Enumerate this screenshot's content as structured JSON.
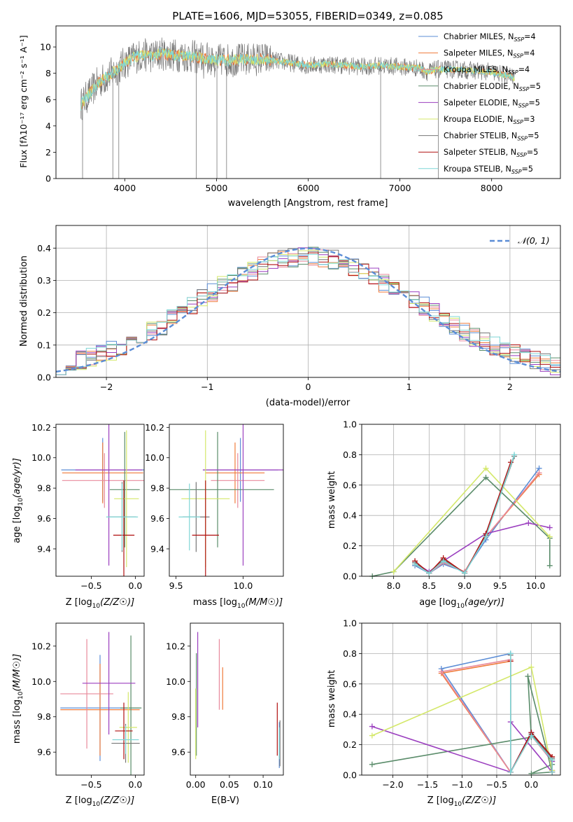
{
  "colors": {
    "Chabrier MILES": "#5b8dd6",
    "Salpeter MILES": "#f07c3c",
    "Kroupa MILES": "#e8899b",
    "Chabrier ELODIE": "#5a8c6a",
    "Salpeter ELODIE": "#9b3fbf",
    "Kroupa ELODIE": "#d4e86a",
    "Chabrier STELIB": "#777777",
    "Salpeter STELIB": "#b01010",
    "Kroupa STELIB": "#7fd6d6"
  },
  "chart_data": [
    {
      "id": "spectrum",
      "type": "line",
      "title": "PLATE=1606, MJD=53055, FIBERID=0349, z=0.085",
      "xlabel": "wavelength [Angstrom, rest frame]",
      "ylabel": "Flux [fλ10⁻¹⁷ erg cm⁻² s⁻¹ A⁻¹]",
      "xlim": [
        3250,
        8750
      ],
      "ylim": [
        0,
        11.6
      ],
      "xticks": [
        4000,
        5000,
        6000,
        7000,
        8000
      ],
      "yticks": [
        0,
        2,
        4,
        6,
        8,
        10
      ],
      "grid": false,
      "legend_position": "top-right",
      "legend": [
        {
          "model": "Chabrier MILES",
          "label": "Chabrier MILES, N",
          "sub": "SSP",
          "tail": "=4"
        },
        {
          "model": "Salpeter MILES",
          "label": "Salpeter MILES, N",
          "sub": "SSP",
          "tail": "=4"
        },
        {
          "model": "Kroupa MILES",
          "label": "Kroupa MILES, N",
          "sub": "SSP",
          "tail": "=4"
        },
        {
          "model": "Chabrier ELODIE",
          "label": "Chabrier ELODIE, N",
          "sub": "SSP",
          "tail": "=5"
        },
        {
          "model": "Salpeter ELODIE",
          "label": "Salpeter ELODIE, N",
          "sub": "SSP",
          "tail": "=5"
        },
        {
          "model": "Kroupa ELODIE",
          "label": "Kroupa ELODIE, N",
          "sub": "SSP",
          "tail": "=3"
        },
        {
          "model": "Chabrier STELIB",
          "label": "Chabrier STELIB, N",
          "sub": "SSP",
          "tail": "=5"
        },
        {
          "model": "Salpeter STELIB",
          "label": "Salpeter STELIB, N",
          "sub": "SSP",
          "tail": "=5"
        },
        {
          "model": "Kroupa STELIB",
          "label": "Kroupa STELIB, N",
          "sub": "SSP",
          "tail": "=5"
        }
      ],
      "continuum_x": [
        3520,
        3600,
        3700,
        3800,
        3900,
        4000,
        4100,
        4200,
        4300,
        4400,
        4500,
        4700,
        5000,
        5200,
        5500,
        5800,
        6000,
        6200,
        6400,
        6600,
        6800,
        7000,
        7200,
        7300,
        7400,
        7600,
        7800,
        8000,
        8200,
        8250
      ],
      "continuum_y": [
        5.6,
        6.3,
        7.2,
        7.7,
        8.2,
        8.8,
        9.2,
        9.4,
        9.3,
        9.5,
        9.4,
        9.3,
        9.0,
        9.0,
        9.1,
        8.8,
        8.6,
        8.7,
        8.6,
        8.5,
        8.6,
        8.5,
        8.4,
        8.1,
        8.3,
        8.3,
        8.2,
        8.1,
        7.8,
        7.6
      ],
      "deep_lines": [
        3540,
        3870,
        3935,
        4780,
        5005,
        5110,
        6790,
        7420
      ]
    },
    {
      "id": "residuals",
      "type": "line",
      "xlabel": "(data-model)/error",
      "ylabel": "Normed distribution",
      "xlim": [
        -2.5,
        2.5
      ],
      "ylim": [
        0,
        0.47
      ],
      "xticks": [
        -2,
        -1,
        0,
        1,
        2
      ],
      "yticks": [
        0.0,
        0.1,
        0.2,
        0.3,
        0.4
      ],
      "grid": true,
      "legend_position": "top-right",
      "legend": [
        {
          "label": "𝒩(0, 1)",
          "style": "dashed",
          "color": "#5b8dd6"
        }
      ],
      "bin_width": 0.1,
      "bin_start": -2.5
    },
    {
      "id": "age-vs-z",
      "type": "scatter",
      "xlabel_main": "Z [log",
      "xlabel_sub": "10",
      "xlabel_tail": "(Z/Z☉)]",
      "ylabel_main": "age  [log",
      "ylabel_sub": "10",
      "ylabel_tail": "(age/yr)]",
      "xlim": [
        -0.9,
        0.1
      ],
      "ylim": [
        9.22,
        10.22
      ],
      "xticks": [
        -0.5,
        0.0
      ],
      "yticks": [
        9.4,
        9.6,
        9.8,
        10.0,
        10.2
      ],
      "points": [
        {
          "model": "Chabrier MILES",
          "x": -0.37,
          "y": 9.92,
          "xerr": 0.47,
          "yerr": 0.21
        },
        {
          "model": "Salpeter MILES",
          "x": -0.37,
          "y": 9.9,
          "xerr": 0.46,
          "yerr": 0.2
        },
        {
          "model": "Kroupa MILES",
          "x": -0.35,
          "y": 9.85,
          "xerr": 0.48,
          "yerr": 0.18
        },
        {
          "model": "Chabrier ELODIE",
          "x": -0.12,
          "y": 9.79,
          "xerr": 0.17,
          "yerr": 0.38
        },
        {
          "model": "Salpeter ELODIE",
          "x": -0.3,
          "y": 9.92,
          "xerr": 0.38,
          "yerr": 0.63
        },
        {
          "model": "Kroupa ELODIE",
          "x": -0.1,
          "y": 9.73,
          "xerr": 0.14,
          "yerr": 0.45
        },
        {
          "model": "Chabrier STELIB",
          "x": -0.15,
          "y": 9.61,
          "xerr": 0.16,
          "yerr": 0.23
        },
        {
          "model": "Salpeter STELIB",
          "x": -0.13,
          "y": 9.49,
          "xerr": 0.12,
          "yerr": 0.36
        },
        {
          "model": "Kroupa STELIB",
          "x": -0.15,
          "y": 9.61,
          "xerr": 0.18,
          "yerr": 0.22
        }
      ]
    },
    {
      "id": "age-vs-mass",
      "type": "scatter",
      "xlabel_main": "mass [log",
      "xlabel_sub": "10",
      "xlabel_tail": "(M/M☉)]",
      "xlim": [
        9.45,
        10.3
      ],
      "ylim": [
        9.22,
        10.22
      ],
      "xticks": [
        9.5,
        10.0
      ],
      "yticks": [
        9.4,
        9.6,
        9.8,
        10.0,
        10.2
      ],
      "points": [
        {
          "model": "Chabrier MILES",
          "x": 9.98,
          "y": 9.92,
          "xerr": 0.28,
          "yerr": 0.21
        },
        {
          "model": "Salpeter MILES",
          "x": 9.94,
          "y": 9.9,
          "xerr": 0.22,
          "yerr": 0.2
        },
        {
          "model": "Kroupa MILES",
          "x": 9.96,
          "y": 9.85,
          "xerr": 0.2,
          "yerr": 0.18
        },
        {
          "model": "Chabrier ELODIE",
          "x": 9.81,
          "y": 9.79,
          "xerr": 0.42,
          "yerr": 0.38
        },
        {
          "model": "Salpeter ELODIE",
          "x": 10.0,
          "y": 9.92,
          "xerr": 0.3,
          "yerr": 0.63
        },
        {
          "model": "Kroupa ELODIE",
          "x": 9.72,
          "y": 9.73,
          "xerr": 0.18,
          "yerr": 0.45
        },
        {
          "model": "Chabrier STELIB",
          "x": 9.65,
          "y": 9.61,
          "xerr": 0.1,
          "yerr": 0.23
        },
        {
          "model": "Salpeter STELIB",
          "x": 9.72,
          "y": 9.49,
          "xerr": 0.1,
          "yerr": 0.36
        },
        {
          "model": "Kroupa STELIB",
          "x": 9.6,
          "y": 9.61,
          "xerr": 0.08,
          "yerr": 0.22
        }
      ]
    },
    {
      "id": "massweight-vs-age",
      "type": "line",
      "xlabel_main": "age  [log",
      "xlabel_sub": "10",
      "xlabel_tail": "(age/yr)]",
      "ylabel": "mass weight",
      "xlim": [
        7.55,
        10.35
      ],
      "ylim": [
        0,
        1.0
      ],
      "xticks": [
        8.0,
        8.5,
        9.0,
        9.5,
        10.0
      ],
      "yticks": [
        0.0,
        0.2,
        0.4,
        0.6,
        0.8,
        1.0
      ],
      "grid": true,
      "series": [
        {
          "model": "Chabrier MILES",
          "x": [
            8.3,
            8.5,
            8.7,
            9.0,
            9.3,
            10.05
          ],
          "y": [
            0.07,
            0.02,
            0.08,
            0.03,
            0.24,
            0.71
          ]
        },
        {
          "model": "Salpeter MILES",
          "x": [
            8.3,
            8.5,
            8.7,
            9.0,
            9.3,
            10.05
          ],
          "y": [
            0.08,
            0.02,
            0.09,
            0.03,
            0.26,
            0.67
          ]
        },
        {
          "model": "Kroupa MILES",
          "x": [
            8.3,
            8.5,
            8.7,
            9.0,
            9.3,
            10.05
          ],
          "y": [
            0.08,
            0.02,
            0.09,
            0.03,
            0.26,
            0.68
          ]
        },
        {
          "model": "Chabrier ELODIE",
          "x": [
            7.7,
            8.0,
            9.3,
            10.2,
            10.2
          ],
          "y": [
            0.0,
            0.03,
            0.65,
            0.25,
            0.07
          ]
        },
        {
          "model": "Salpeter ELODIE",
          "x": [
            8.3,
            8.5,
            8.7,
            9.3,
            9.9,
            10.2
          ],
          "y": [
            0.09,
            0.03,
            0.1,
            0.28,
            0.35,
            0.32
          ]
        },
        {
          "model": "Kroupa ELODIE",
          "x": [
            8.0,
            9.3,
            10.2
          ],
          "y": [
            0.03,
            0.71,
            0.26
          ]
        },
        {
          "model": "Chabrier STELIB",
          "x": [
            8.3,
            8.5,
            8.7,
            9.0,
            9.3,
            9.7
          ],
          "y": [
            0.09,
            0.02,
            0.11,
            0.02,
            0.27,
            0.79
          ]
        },
        {
          "model": "Salpeter STELIB",
          "x": [
            8.3,
            8.5,
            8.7,
            9.0,
            9.3,
            9.65
          ],
          "y": [
            0.1,
            0.02,
            0.12,
            0.02,
            0.28,
            0.75
          ]
        },
        {
          "model": "Kroupa STELIB",
          "x": [
            8.3,
            8.5,
            8.7,
            9.0,
            9.3,
            9.7
          ],
          "y": [
            0.08,
            0.02,
            0.1,
            0.02,
            0.26,
            0.8
          ]
        }
      ]
    },
    {
      "id": "mass-vs-z",
      "type": "scatter",
      "xlabel_main": "Z [log",
      "xlabel_sub": "10",
      "xlabel_tail": "(Z/Z☉)]",
      "ylabel_main": "mass [log",
      "ylabel_sub": "10",
      "ylabel_tail": "(M/M☉)]",
      "xlim": [
        -0.9,
        0.1
      ],
      "ylim": [
        9.47,
        10.33
      ],
      "xticks": [
        -0.5,
        0.0
      ],
      "yticks": [
        9.6,
        9.8,
        10.0,
        10.2
      ],
      "points": [
        {
          "model": "Chabrier MILES",
          "x": -0.4,
          "y": 9.85,
          "xerr": 0.45,
          "yerr": 0.3
        },
        {
          "model": "Salpeter MILES",
          "x": -0.4,
          "y": 9.84,
          "xerr": 0.45,
          "yerr": 0.26
        },
        {
          "model": "Kroupa MILES",
          "x": -0.55,
          "y": 9.93,
          "xerr": 0.3,
          "yerr": 0.31
        },
        {
          "model": "Chabrier ELODIE",
          "x": -0.05,
          "y": 9.85,
          "xerr": 0.12,
          "yerr": 0.41
        },
        {
          "model": "Salpeter ELODIE",
          "x": -0.3,
          "y": 9.99,
          "xerr": 0.3,
          "yerr": 0.29
        },
        {
          "model": "Kroupa ELODIE",
          "x": -0.08,
          "y": 9.74,
          "xerr": 0.1,
          "yerr": 0.2
        },
        {
          "model": "Chabrier STELIB",
          "x": -0.11,
          "y": 9.65,
          "xerr": 0.16,
          "yerr": 0.11
        },
        {
          "model": "Salpeter STELIB",
          "x": -0.13,
          "y": 9.72,
          "xerr": 0.1,
          "yerr": 0.16
        },
        {
          "model": "Kroupa STELIB",
          "x": -0.11,
          "y": 9.67,
          "xerr": 0.15,
          "yerr": 0.08
        }
      ]
    },
    {
      "id": "mass-vs-ebv",
      "type": "scatter",
      "xlabel": "E(B-V)",
      "xlim": [
        -0.008,
        0.13
      ],
      "ylim": [
        9.47,
        10.33
      ],
      "xticks": [
        0.0,
        0.05,
        0.1
      ],
      "yticks": [
        9.6,
        9.8,
        10.0,
        10.2
      ],
      "points": [
        {
          "model": "Chabrier MILES",
          "x": 0.124,
          "y": 9.64,
          "yerr": 0.13
        },
        {
          "model": "Salpeter MILES",
          "x": 0.04,
          "y": 9.96,
          "yerr": 0.12
        },
        {
          "model": "Kroupa MILES",
          "x": 0.035,
          "y": 10.04,
          "yerr": 0.2
        },
        {
          "model": "Chabrier ELODIE",
          "x": 0.001,
          "y": 9.87,
          "yerr": 0.29
        },
        {
          "model": "Salpeter ELODIE",
          "x": 0.003,
          "y": 10.01,
          "yerr": 0.27
        },
        {
          "model": "Kroupa ELODIE",
          "x": 0.0,
          "y": 9.76,
          "yerr": 0.2
        },
        {
          "model": "Chabrier STELIB",
          "x": 0.125,
          "y": 9.65,
          "yerr": 0.13
        },
        {
          "model": "Salpeter STELIB",
          "x": 0.121,
          "y": 9.73,
          "yerr": 0.15
        },
        {
          "model": "Kroupa STELIB",
          "x": 0.124,
          "y": 9.65,
          "yerr": 0.09
        }
      ]
    },
    {
      "id": "massweight-vs-z",
      "type": "line",
      "xlabel_main": "Z [log",
      "xlabel_sub": "10",
      "xlabel_tail": "(Z/Z☉)]",
      "ylabel": "mass weight",
      "xlim": [
        -2.45,
        0.42
      ],
      "ylim": [
        0,
        1.0
      ],
      "xticks": [
        -2.0,
        -1.5,
        -1.0,
        -0.5,
        0.0
      ],
      "yticks": [
        0.0,
        0.2,
        0.4,
        0.6,
        0.8,
        1.0
      ],
      "grid": true,
      "series": [
        {
          "model": "Chabrier MILES",
          "x": [
            -0.3,
            -1.3,
            -0.3,
            0.0,
            0.3,
            0.3
          ],
          "y": [
            0.8,
            0.7,
            0.02,
            0.28,
            0.09,
            0.03
          ]
        },
        {
          "model": "Salpeter MILES",
          "x": [
            -0.3,
            -1.3,
            -0.3,
            0.0,
            0.3,
            0.3
          ],
          "y": [
            0.75,
            0.67,
            0.02,
            0.26,
            0.1,
            0.03
          ]
        },
        {
          "model": "Kroupa MILES",
          "x": [
            -0.3,
            -1.3,
            -0.3,
            0.0,
            0.3,
            0.3
          ],
          "y": [
            0.76,
            0.68,
            0.02,
            0.26,
            0.09,
            0.03
          ]
        },
        {
          "model": "Chabrier ELODIE",
          "x": [
            -2.3,
            0.0,
            -0.05,
            0.3,
            0.0,
            0.3
          ],
          "y": [
            0.07,
            0.25,
            0.65,
            0.02,
            0.01,
            0.07
          ]
        },
        {
          "model": "Salpeter ELODIE",
          "x": [
            -2.3,
            -0.3,
            0.0,
            0.3,
            0.3,
            -0.3
          ],
          "y": [
            0.32,
            0.02,
            0.28,
            0.09,
            0.02,
            0.35
          ]
        },
        {
          "model": "Kroupa ELODIE",
          "x": [
            -2.3,
            0.0,
            0.3
          ],
          "y": [
            0.26,
            0.71,
            0.03
          ]
        },
        {
          "model": "Chabrier STELIB",
          "x": [
            -0.3,
            -0.3,
            0.0,
            0.3,
            0.3
          ],
          "y": [
            0.79,
            0.02,
            0.27,
            0.11,
            0.02
          ]
        },
        {
          "model": "Salpeter STELIB",
          "x": [
            -0.3,
            -0.3,
            0.0,
            0.3,
            0.3
          ],
          "y": [
            0.75,
            0.02,
            0.28,
            0.12,
            0.02
          ]
        },
        {
          "model": "Kroupa STELIB",
          "x": [
            -0.3,
            -0.3,
            0.0,
            0.3,
            0.3
          ],
          "y": [
            0.8,
            0.02,
            0.26,
            0.1,
            0.02
          ]
        }
      ]
    }
  ]
}
